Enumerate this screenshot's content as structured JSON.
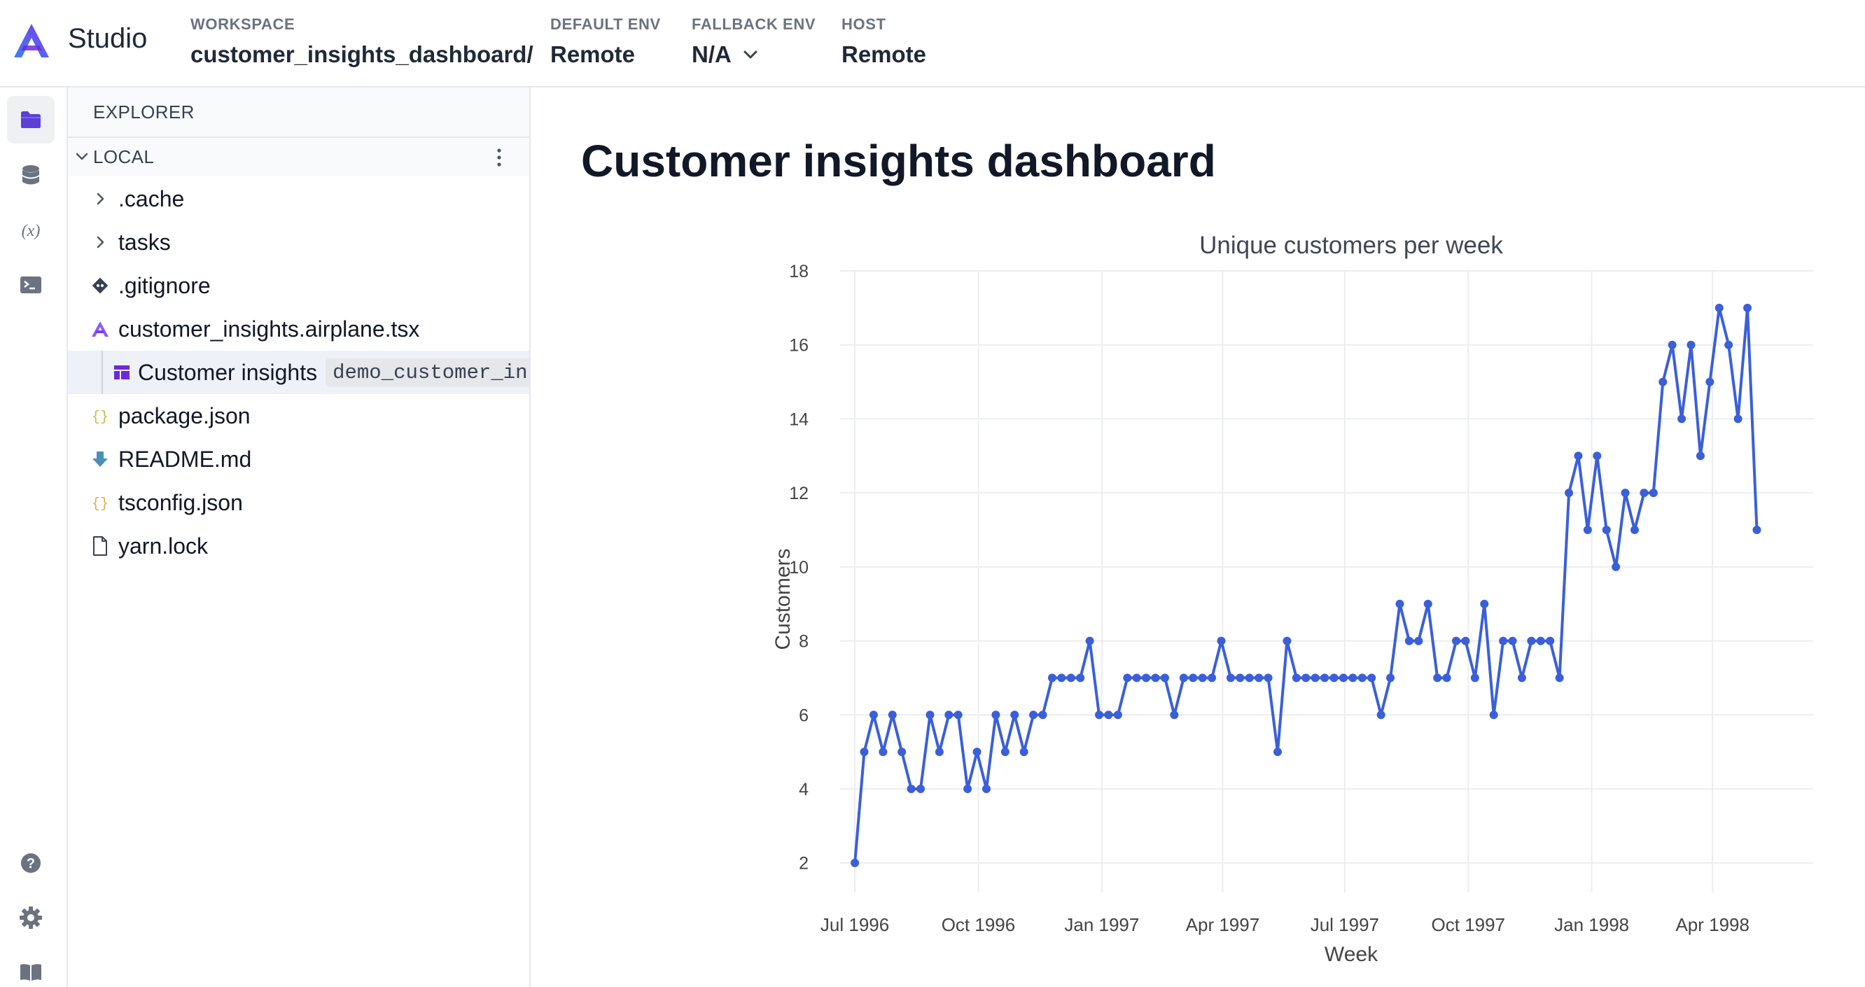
{
  "header": {
    "app_name": "Studio",
    "workspace": {
      "label": "WORKSPACE",
      "value": "customer_insights_dashboard/"
    },
    "default_env": {
      "label": "DEFAULT ENV",
      "value": "Remote"
    },
    "fallback_env": {
      "label": "FALLBACK ENV",
      "value": "N/A"
    },
    "host": {
      "label": "HOST",
      "value": "Remote"
    }
  },
  "rail": {
    "top": [
      "folder-icon",
      "database-icon",
      "variable-icon",
      "terminal-icon"
    ],
    "bottom": [
      "help-icon",
      "gear-icon",
      "book-icon"
    ]
  },
  "explorer": {
    "title": "EXPLORER",
    "section": "LOCAL",
    "items": [
      {
        "name": ".cache",
        "icon": "chevron-right-icon"
      },
      {
        "name": "tasks",
        "icon": "chevron-right-icon"
      },
      {
        "name": ".gitignore",
        "icon": "git-icon"
      },
      {
        "name": "customer_insights.airplane.tsx",
        "icon": "airplane-icon"
      },
      {
        "name": "Customer insights",
        "icon": "view-icon",
        "slug": "demo_customer_insights"
      },
      {
        "name": "package.json",
        "icon": "json-icon"
      },
      {
        "name": "README.md",
        "icon": "markdown-icon"
      },
      {
        "name": "tsconfig.json",
        "icon": "json-icon"
      },
      {
        "name": "yarn.lock",
        "icon": "file-icon"
      }
    ]
  },
  "main": {
    "title": "Customer insights dashboard"
  },
  "colors": {
    "accent": "#6e3fe0",
    "series": "#3a5fd9",
    "grid": "#ebedf0"
  },
  "chart_data": {
    "type": "line",
    "title": "Unique customers per week",
    "xlabel": "Week",
    "ylabel": "Customers",
    "ylim": [
      1.2,
      18
    ],
    "yticks": [
      2,
      4,
      6,
      8,
      10,
      12,
      14,
      16,
      18
    ],
    "xlim": [
      "1996-06-20",
      "1998-06-15"
    ],
    "xticks": [
      {
        "date": "1996-07-01",
        "label": "Jul 1996"
      },
      {
        "date": "1996-10-01",
        "label": "Oct 1996"
      },
      {
        "date": "1997-01-01",
        "label": "Jan 1997"
      },
      {
        "date": "1997-04-01",
        "label": "Apr 1997"
      },
      {
        "date": "1997-07-01",
        "label": "Jul 1997"
      },
      {
        "date": "1997-10-01",
        "label": "Oct 1997"
      },
      {
        "date": "1998-01-01",
        "label": "Jan 1998"
      },
      {
        "date": "1998-04-01",
        "label": "Apr 1998"
      }
    ],
    "grid": true,
    "legend": "none",
    "series": [
      {
        "x": [
          "1996-07-01",
          "1996-07-08",
          "1996-07-15",
          "1996-07-22",
          "1996-07-29",
          "1996-08-05",
          "1996-08-12",
          "1996-08-19",
          "1996-08-26",
          "1996-09-02",
          "1996-09-09",
          "1996-09-16",
          "1996-09-23",
          "1996-09-30",
          "1996-10-07",
          "1996-10-14",
          "1996-10-21",
          "1996-10-28",
          "1996-11-04",
          "1996-11-11",
          "1996-11-18",
          "1996-11-25",
          "1996-12-02",
          "1996-12-09",
          "1996-12-16",
          "1996-12-23",
          "1996-12-30",
          "1997-01-06",
          "1997-01-13",
          "1997-01-20",
          "1997-01-27",
          "1997-02-03",
          "1997-02-10",
          "1997-02-17",
          "1997-02-24",
          "1997-03-03",
          "1997-03-10",
          "1997-03-17",
          "1997-03-24",
          "1997-03-31",
          "1997-04-07",
          "1997-04-14",
          "1997-04-21",
          "1997-04-28",
          "1997-05-05",
          "1997-05-12",
          "1997-05-19",
          "1997-05-26",
          "1997-06-02",
          "1997-06-09",
          "1997-06-16",
          "1997-06-23",
          "1997-06-30",
          "1997-07-07",
          "1997-07-14",
          "1997-07-21",
          "1997-07-28",
          "1997-08-04",
          "1997-08-11",
          "1997-08-18",
          "1997-08-25",
          "1997-09-01",
          "1997-09-08",
          "1997-09-15",
          "1997-09-22",
          "1997-09-29",
          "1997-10-06",
          "1997-10-13",
          "1997-10-20",
          "1997-10-27",
          "1997-11-03",
          "1997-11-10",
          "1997-11-17",
          "1997-11-24",
          "1997-12-01",
          "1997-12-08",
          "1997-12-15",
          "1997-12-22",
          "1997-12-29",
          "1998-01-05",
          "1998-01-12",
          "1998-01-19",
          "1998-01-26",
          "1998-02-02",
          "1998-02-09",
          "1998-02-16",
          "1998-02-23",
          "1998-03-02",
          "1998-03-09",
          "1998-03-16",
          "1998-03-23",
          "1998-03-30",
          "1998-04-06",
          "1998-04-13",
          "1998-04-20",
          "1998-04-27",
          "1998-05-04"
        ],
        "y": [
          2,
          5,
          6,
          5,
          6,
          5,
          4,
          4,
          6,
          5,
          6,
          6,
          4,
          5,
          4,
          6,
          5,
          6,
          5,
          6,
          6,
          7,
          7,
          7,
          7,
          8,
          6,
          6,
          6,
          7,
          7,
          7,
          7,
          7,
          6,
          7,
          7,
          7,
          7,
          8,
          7,
          7,
          7,
          7,
          7,
          5,
          8,
          7,
          7,
          7,
          7,
          7,
          7,
          7,
          7,
          7,
          6,
          7,
          9,
          8,
          8,
          9,
          7,
          7,
          8,
          8,
          7,
          9,
          6,
          8,
          8,
          7,
          8,
          8,
          8,
          7,
          12,
          13,
          11,
          13,
          11,
          10,
          12,
          11,
          12,
          12,
          15,
          16,
          14,
          16,
          13,
          15,
          17,
          16,
          14,
          17,
          11
        ]
      }
    ]
  }
}
